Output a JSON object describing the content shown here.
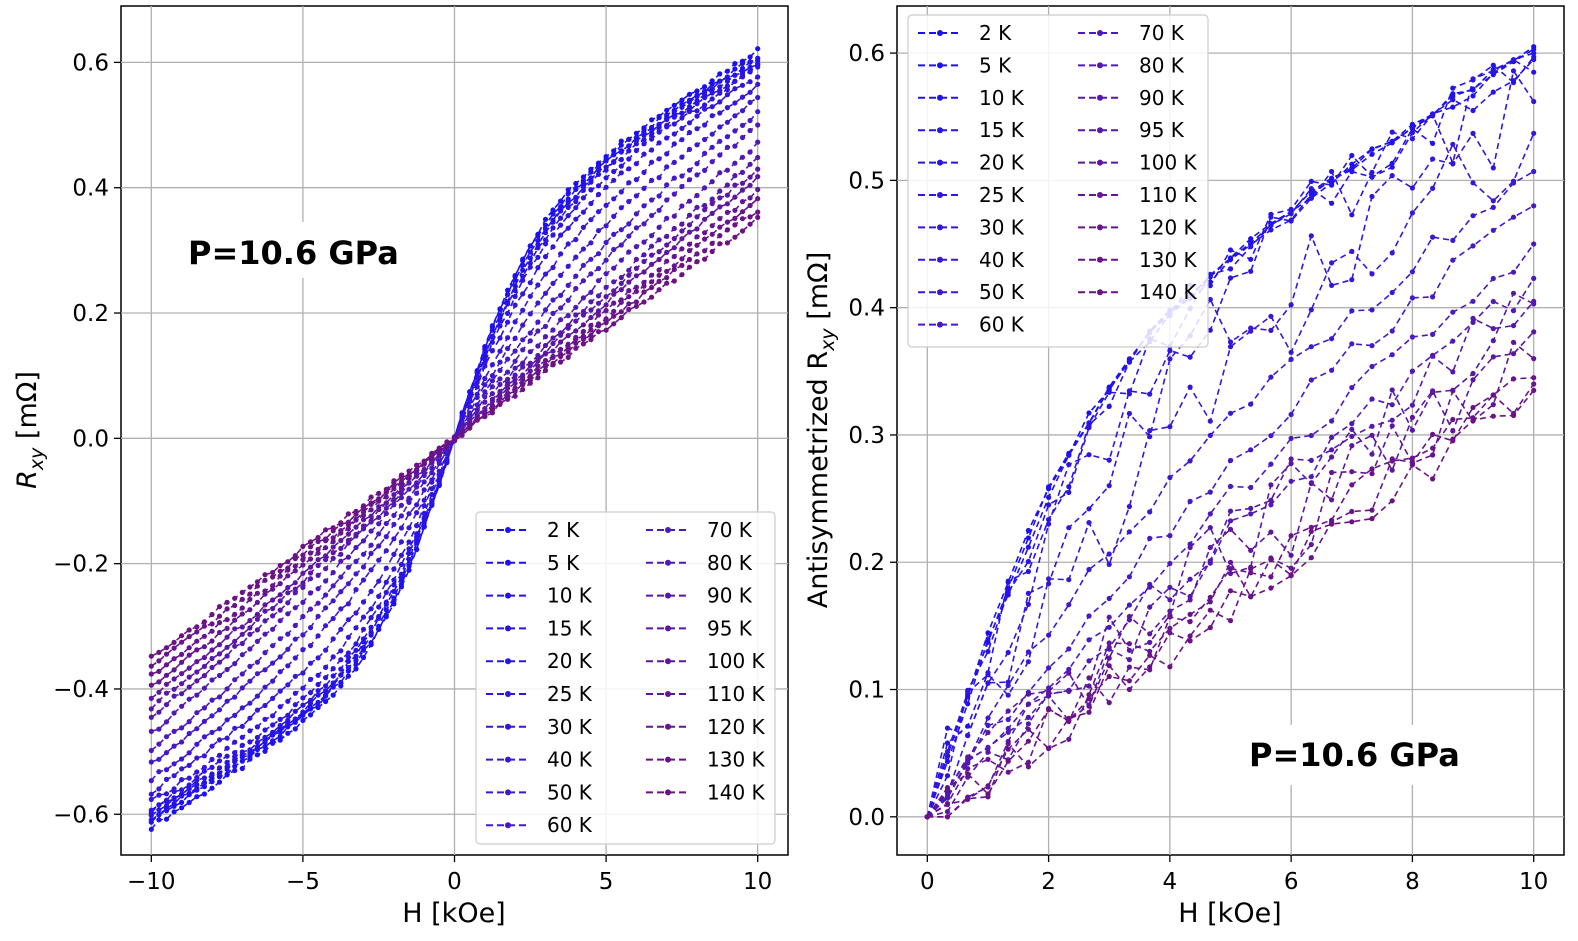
{
  "chart_data": [
    {
      "type": "line",
      "panel": "left",
      "title": "",
      "xlabel": "H [kOe]",
      "ylabel": "R",
      "ylabel_sub": "xy",
      "ylabel_unit": " [mΩ]",
      "xlim": [
        -11,
        11
      ],
      "ylim": [
        -0.665,
        0.69
      ],
      "xticks": [
        -10,
        -5,
        0,
        5,
        10
      ],
      "xtick_labels": [
        "−10",
        "−5",
        "0",
        "5",
        "10"
      ],
      "yticks": [
        -0.6,
        -0.4,
        -0.2,
        0.0,
        0.2,
        0.4,
        0.6
      ],
      "ytick_labels": [
        "−0.6",
        "−0.4",
        "−0.2",
        "0.0",
        "0.2",
        "0.4",
        "0.6"
      ],
      "grid": true,
      "legend_position": "lower-right",
      "annotation": "P=10.6 GPa",
      "x_range": [
        -10,
        10
      ],
      "series": [
        {
          "name": "2 K",
          "color": "#1c10f2",
          "amp": 0.62,
          "sat": 2.6,
          "lin": 0.5
        },
        {
          "name": "5 K",
          "color": "#1e11f0",
          "amp": 0.61,
          "sat": 2.6,
          "lin": 0.5
        },
        {
          "name": "10 K",
          "color": "#2212ec",
          "amp": 0.605,
          "sat": 2.7,
          "lin": 0.5
        },
        {
          "name": "15 K",
          "color": "#2613e8",
          "amp": 0.6,
          "sat": 2.8,
          "lin": 0.5
        },
        {
          "name": "20 K",
          "color": "#2a14e4",
          "amp": 0.595,
          "sat": 2.9,
          "lin": 0.5
        },
        {
          "name": "25 K",
          "color": "#2e15e0",
          "amp": 0.59,
          "sat": 3.0,
          "lin": 0.52
        },
        {
          "name": "30 K",
          "color": "#3216dc",
          "amp": 0.58,
          "sat": 3.2,
          "lin": 0.55
        },
        {
          "name": "40 K",
          "color": "#3817d6",
          "amp": 0.565,
          "sat": 3.5,
          "lin": 0.6
        },
        {
          "name": "50 K",
          "color": "#3e18d0",
          "amp": 0.545,
          "sat": 4.0,
          "lin": 0.65
        },
        {
          "name": "60 K",
          "color": "#4419c8",
          "amp": 0.52,
          "sat": 4.5,
          "lin": 0.7
        },
        {
          "name": "70 K",
          "color": "#4a1abf",
          "amp": 0.5,
          "sat": 5.0,
          "lin": 0.75
        },
        {
          "name": "80 K",
          "color": "#5019b6",
          "amp": 0.47,
          "sat": 5.5,
          "lin": 0.8
        },
        {
          "name": "90 K",
          "color": "#5618ac",
          "amp": 0.445,
          "sat": 6.0,
          "lin": 0.85
        },
        {
          "name": "95 K",
          "color": "#5a17a6",
          "amp": 0.43,
          "sat": 6.0,
          "lin": 0.88
        },
        {
          "name": "100 K",
          "color": "#5e16a0",
          "amp": 0.415,
          "sat": 6.5,
          "lin": 0.9
        },
        {
          "name": "110 K",
          "color": "#631596",
          "amp": 0.395,
          "sat": 7.0,
          "lin": 0.92
        },
        {
          "name": "120 K",
          "color": "#67148e",
          "amp": 0.38,
          "sat": 7.0,
          "lin": 0.94
        },
        {
          "name": "130 K",
          "color": "#6a1388",
          "amp": 0.365,
          "sat": 7.5,
          "lin": 0.96
        },
        {
          "name": "140 K",
          "color": "#6c1284",
          "amp": 0.35,
          "sat": 8.0,
          "lin": 0.98
        }
      ]
    },
    {
      "type": "line",
      "panel": "right",
      "title": "",
      "xlabel": "H [kOe]",
      "ylabel": "Antisymmetrized R",
      "ylabel_sub": "xy",
      "ylabel_unit": " [mΩ]",
      "xlim": [
        -0.5,
        10.5
      ],
      "ylim": [
        -0.03,
        0.637
      ],
      "xticks": [
        0,
        2,
        4,
        6,
        8,
        10
      ],
      "xtick_labels": [
        "0",
        "2",
        "4",
        "6",
        "8",
        "10"
      ],
      "yticks": [
        0.0,
        0.1,
        0.2,
        0.3,
        0.4,
        0.5,
        0.6
      ],
      "ytick_labels": [
        "0.0",
        "0.1",
        "0.2",
        "0.3",
        "0.4",
        "0.5",
        "0.6"
      ],
      "grid": true,
      "legend_position": "upper-left",
      "annotation": "P=10.6 GPa",
      "x_range": [
        0,
        10
      ],
      "series": [
        {
          "name": "2 K",
          "color": "#1c10f2",
          "amp": 0.605,
          "sat": 2.6,
          "lin": 0.5,
          "noise": 0.004
        },
        {
          "name": "5 K",
          "color": "#1e11f0",
          "amp": 0.603,
          "sat": 2.6,
          "lin": 0.5,
          "noise": 0.004
        },
        {
          "name": "10 K",
          "color": "#2212ec",
          "amp": 0.6,
          "sat": 2.7,
          "lin": 0.5,
          "noise": 0.005
        },
        {
          "name": "15 K",
          "color": "#2613e8",
          "amp": 0.597,
          "sat": 2.8,
          "lin": 0.5,
          "noise": 0.02
        },
        {
          "name": "20 K",
          "color": "#2a14e4",
          "amp": 0.595,
          "sat": 2.9,
          "lin": 0.5,
          "noise": 0.015
        },
        {
          "name": "25 K",
          "color": "#2e15e0",
          "amp": 0.585,
          "sat": 3.0,
          "lin": 0.52,
          "noise": 0.03
        },
        {
          "name": "30 K",
          "color": "#3216dc",
          "amp": 0.562,
          "sat": 3.3,
          "lin": 0.56,
          "noise": 0.04
        },
        {
          "name": "40 K",
          "color": "#3817d6",
          "amp": 0.537,
          "sat": 3.8,
          "lin": 0.62,
          "noise": 0.04
        },
        {
          "name": "50 K",
          "color": "#3e18d0",
          "amp": 0.507,
          "sat": 4.2,
          "lin": 0.68,
          "noise": 0.01
        },
        {
          "name": "60 K",
          "color": "#4419c8",
          "amp": 0.48,
          "sat": 4.8,
          "lin": 0.74,
          "noise": 0.01
        },
        {
          "name": "70 K",
          "color": "#4a1abf",
          "amp": 0.45,
          "sat": 5.2,
          "lin": 0.8,
          "noise": 0.01
        },
        {
          "name": "80 K",
          "color": "#5019b6",
          "amp": 0.423,
          "sat": 5.8,
          "lin": 0.85,
          "noise": 0.015
        },
        {
          "name": "90 K",
          "color": "#5618ac",
          "amp": 0.405,
          "sat": 6.2,
          "lin": 0.88,
          "noise": 0.03
        },
        {
          "name": "95 K",
          "color": "#5a17a6",
          "amp": 0.403,
          "sat": 6.5,
          "lin": 0.9,
          "noise": 0.035
        },
        {
          "name": "100 K",
          "color": "#5e16a0",
          "amp": 0.381,
          "sat": 6.8,
          "lin": 0.92,
          "noise": 0.03
        },
        {
          "name": "110 K",
          "color": "#631596",
          "amp": 0.36,
          "sat": 7.0,
          "lin": 0.94,
          "noise": 0.03
        },
        {
          "name": "120 K",
          "color": "#67148e",
          "amp": 0.345,
          "sat": 7.2,
          "lin": 0.95,
          "noise": 0.02
        },
        {
          "name": "130 K",
          "color": "#6a1388",
          "amp": 0.34,
          "sat": 7.5,
          "lin": 0.97,
          "noise": 0.02
        },
        {
          "name": "140 K",
          "color": "#6c1284",
          "amp": 0.335,
          "sat": 8.0,
          "lin": 0.98,
          "noise": 0.02
        }
      ]
    }
  ]
}
